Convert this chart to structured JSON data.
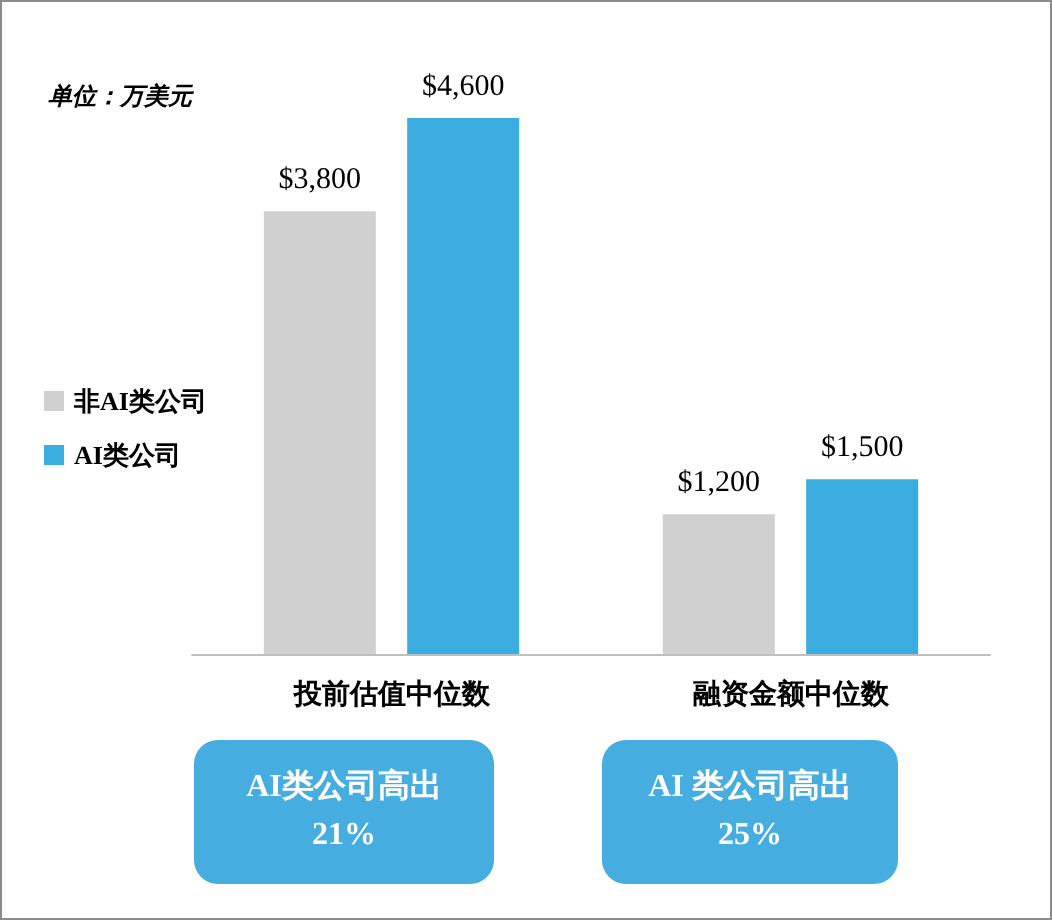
{
  "chart_data": {
    "type": "bar",
    "title": "单位：万美元",
    "categories": [
      "投前估值中位数",
      "融资金额中位数"
    ],
    "series": [
      {
        "name": "非AI类公司",
        "color": "#d0d0d0",
        "values": [
          3800,
          1200
        ],
        "value_labels": [
          "$3,800",
          "$1,200"
        ]
      },
      {
        "name": "AI类公司",
        "color": "#3aacdf",
        "values": [
          4600,
          1500
        ],
        "value_labels": [
          "$4,600",
          "$1,500"
        ]
      }
    ],
    "legend": "left",
    "annotations": [
      "AI类公司高出\n21%",
      "AI 类公司高出\n25%"
    ]
  }
}
